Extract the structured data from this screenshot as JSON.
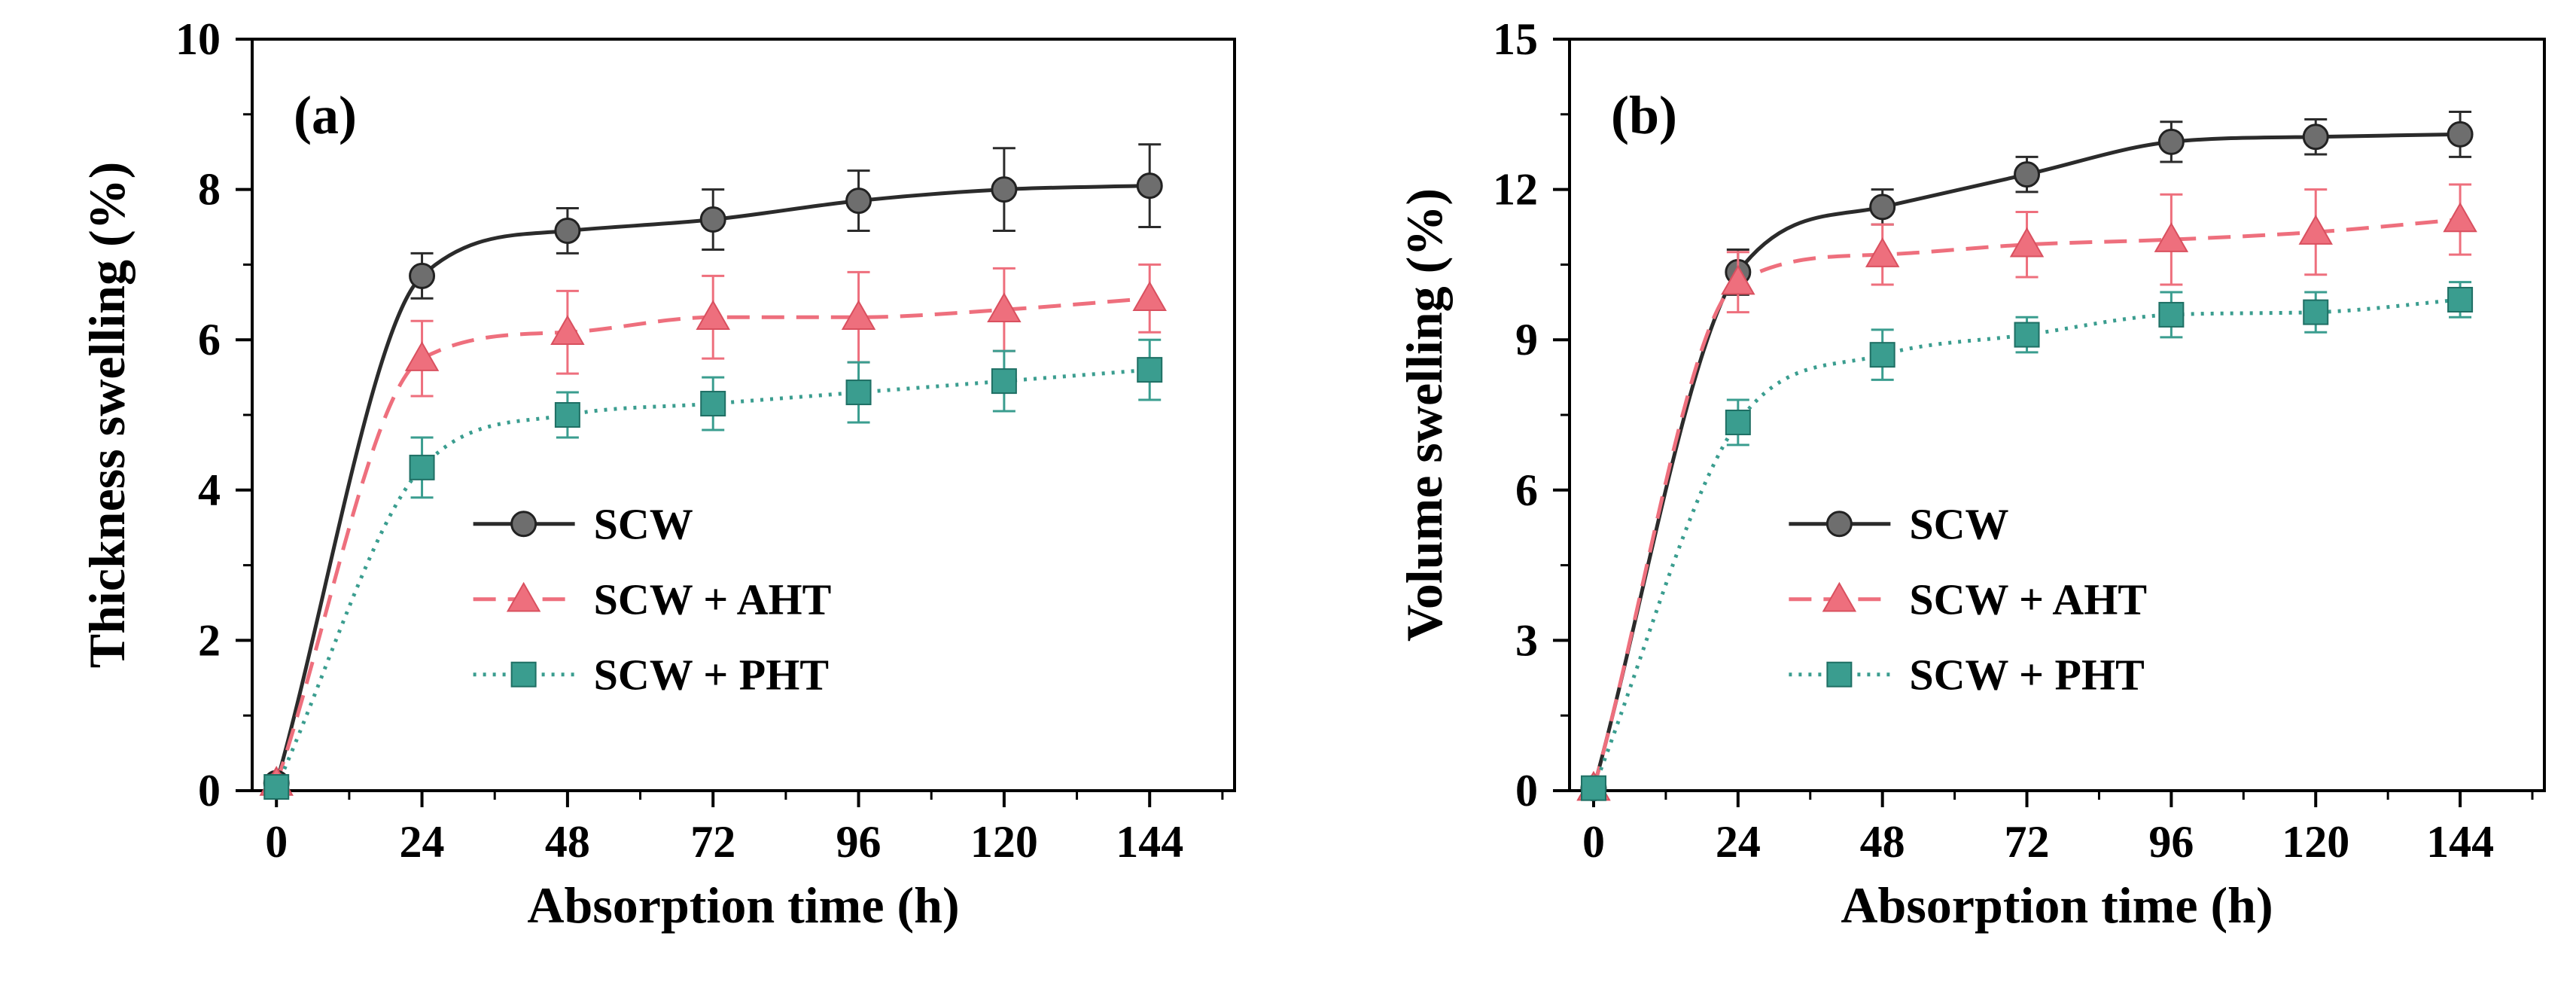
{
  "chart_data": [
    {
      "type": "line",
      "panel_label": "(a)",
      "xlabel": "Absorption time (h)",
      "ylabel": "Thickness swelling (%)",
      "xlim": [
        -4,
        158
      ],
      "ylim": [
        0,
        10
      ],
      "x_ticks": [
        0,
        24,
        48,
        72,
        96,
        120,
        144
      ],
      "y_ticks": [
        0,
        2,
        4,
        6,
        8,
        10
      ],
      "grid": false,
      "legend_position": "lower-right",
      "x": [
        0,
        24,
        48,
        72,
        96,
        120,
        144
      ],
      "series": [
        {
          "name": "SCW",
          "values": [
            0.1,
            6.85,
            7.45,
            7.6,
            7.85,
            8.0,
            8.05
          ],
          "errors": [
            0.1,
            0.3,
            0.3,
            0.4,
            0.4,
            0.55,
            0.55
          ],
          "color": "#2b2b2b",
          "marker": "circle",
          "line_style": "solid"
        },
        {
          "name": "SCW + AHT",
          "values": [
            0.1,
            5.75,
            6.1,
            6.3,
            6.3,
            6.4,
            6.55
          ],
          "errors": [
            0.1,
            0.5,
            0.55,
            0.55,
            0.6,
            0.55,
            0.45
          ],
          "color": "#ee6f7d",
          "marker": "triangle",
          "line_style": "dashed"
        },
        {
          "name": "SCW + PHT",
          "values": [
            0.05,
            4.3,
            5.0,
            5.15,
            5.3,
            5.45,
            5.6
          ],
          "errors": [
            0.1,
            0.4,
            0.3,
            0.35,
            0.4,
            0.4,
            0.4
          ],
          "color": "#3a9d8f",
          "marker": "square",
          "line_style": "dotted"
        }
      ]
    },
    {
      "type": "line",
      "panel_label": "(b)",
      "xlabel": "Absorption time (h)",
      "ylabel": "Volume swelling (%)",
      "xlim": [
        -4,
        158
      ],
      "ylim": [
        0,
        15
      ],
      "x_ticks": [
        0,
        24,
        48,
        72,
        96,
        120,
        144
      ],
      "y_ticks": [
        0,
        3,
        6,
        9,
        12,
        15
      ],
      "grid": false,
      "legend_position": "lower-right",
      "x": [
        0,
        24,
        48,
        72,
        96,
        120,
        144
      ],
      "series": [
        {
          "name": "SCW",
          "values": [
            0.05,
            10.35,
            11.65,
            12.3,
            12.95,
            13.05,
            13.1
          ],
          "errors": [
            0.1,
            0.45,
            0.35,
            0.35,
            0.4,
            0.35,
            0.45
          ],
          "color": "#2b2b2b",
          "marker": "circle",
          "line_style": "solid"
        },
        {
          "name": "SCW + AHT",
          "values": [
            0.05,
            10.15,
            10.7,
            10.9,
            11.0,
            11.15,
            11.4
          ],
          "errors": [
            0.1,
            0.6,
            0.6,
            0.65,
            0.9,
            0.85,
            0.7
          ],
          "color": "#ee6f7d",
          "marker": "triangle",
          "line_style": "dashed"
        },
        {
          "name": "SCW + PHT",
          "values": [
            0.05,
            7.35,
            8.7,
            9.1,
            9.5,
            9.55,
            9.8
          ],
          "errors": [
            0.1,
            0.45,
            0.5,
            0.35,
            0.45,
            0.4,
            0.35
          ],
          "color": "#3a9d8f",
          "marker": "square",
          "line_style": "dotted"
        }
      ]
    }
  ]
}
